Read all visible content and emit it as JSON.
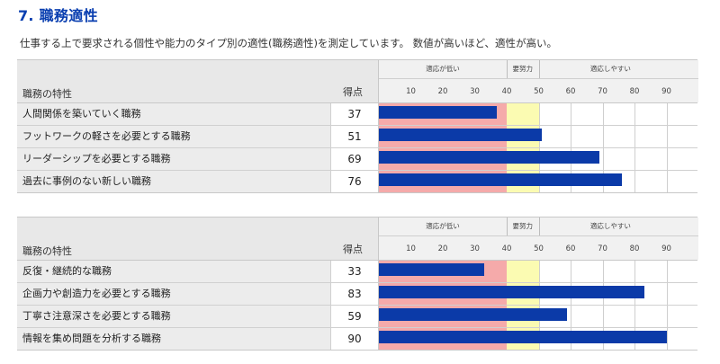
{
  "page": {
    "title": "7. 職務適性",
    "subtitle": "仕事する上で要求される個性や能力のタイプ別の適性(職務適性)を測定しています。 数値が高いほど、適性が高い。"
  },
  "chart_data": [
    {
      "type": "bar",
      "orientation": "horizontal",
      "header": {
        "name_label": "職務の特性",
        "score_label": "得点"
      },
      "zones": [
        {
          "label": "適応が低い",
          "from": 0,
          "to": 40,
          "color": "#f5aaaa"
        },
        {
          "label": "要努力",
          "from": 40,
          "to": 50,
          "color": "#fbfbb2"
        },
        {
          "label": "適応しやすい",
          "from": 50,
          "to": 95,
          "color": "#ffffff"
        }
      ],
      "ticks": [
        "10",
        "20",
        "30",
        "40",
        "50",
        "60",
        "70",
        "80",
        "90"
      ],
      "xlim": [
        0,
        100
      ],
      "categories": [
        "人間関係を築いていく職務",
        "フットワークの軽さを必要とする職務",
        "リーダーシップを必要とする職務",
        "過去に事例のない新しい職務"
      ],
      "values": [
        37,
        51,
        69,
        76
      ],
      "bar_color": "#0b3aa8"
    },
    {
      "type": "bar",
      "orientation": "horizontal",
      "header": {
        "name_label": "職務の特性",
        "score_label": "得点"
      },
      "zones": [
        {
          "label": "適応が低い",
          "from": 0,
          "to": 40,
          "color": "#f5aaaa"
        },
        {
          "label": "要努力",
          "from": 40,
          "to": 50,
          "color": "#fbfbb2"
        },
        {
          "label": "適応しやすい",
          "from": 50,
          "to": 95,
          "color": "#ffffff"
        }
      ],
      "ticks": [
        "10",
        "20",
        "30",
        "40",
        "50",
        "60",
        "70",
        "80",
        "90"
      ],
      "xlim": [
        0,
        100
      ],
      "categories": [
        "反復・継続的な職務",
        "企画力や創造力を必要とする職務",
        "丁寧さ注意深さを必要とする職務",
        "情報を集め問題を分析する職務"
      ],
      "values": [
        33,
        83,
        59,
        90
      ],
      "bar_color": "#0b3aa8"
    }
  ]
}
